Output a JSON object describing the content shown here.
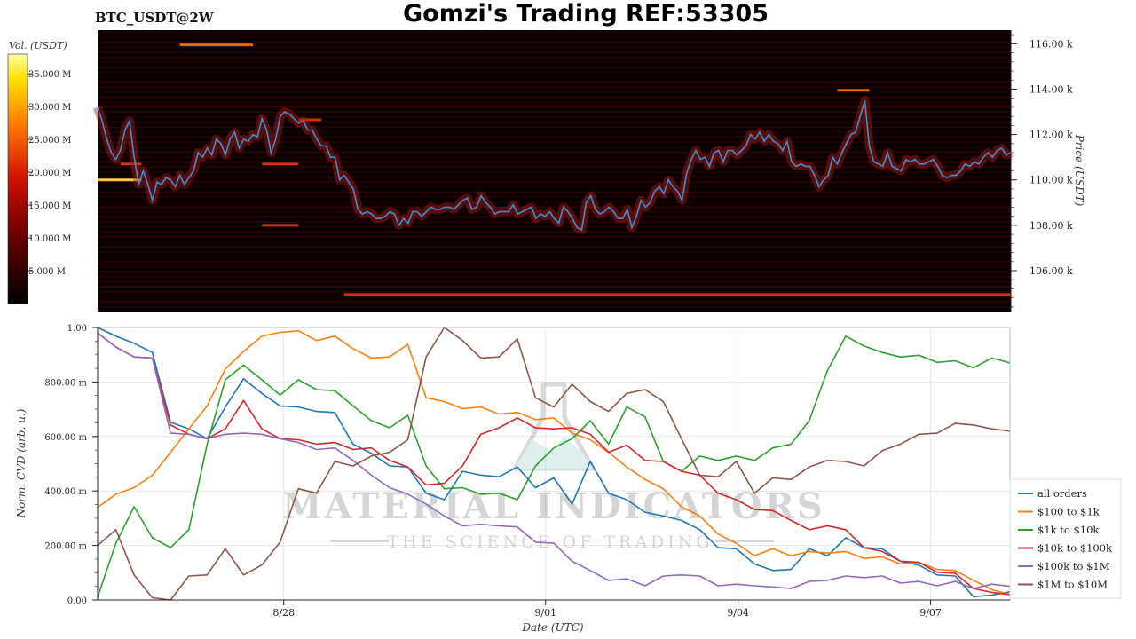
{
  "header": {
    "symbol": "BTC_USDT@2W",
    "title": "Gomzi's Trading REF:53305"
  },
  "colors": {
    "heatmap_bg": "#0a0000",
    "price_line": "#3c8fd6",
    "all_orders": "#1f77b4",
    "s100_1k": "#ff7f0e",
    "s1k_10k": "#2ca02c",
    "s10k_100k": "#d62728",
    "s100k_1m": "#9467bd",
    "s1m_10m": "#8c564b"
  },
  "watermark": {
    "name": "MATERIAL INDICATORS",
    "tagline": "THE SCIENCE OF TRADING",
    "icon": "flask-icon"
  },
  "chart_data": [
    {
      "type": "heatmap",
      "name": "order-book-heatmap",
      "colorbar": {
        "label": "Vol. (USDT)",
        "ticks": [
          {
            "value": 5,
            "label": "5.000 M"
          },
          {
            "value": 10,
            "label": "10.000 M"
          },
          {
            "value": 15,
            "label": "15.000 M"
          },
          {
            "value": 20,
            "label": "20.000 M"
          },
          {
            "value": 25,
            "label": "25.000 M"
          },
          {
            "value": 30,
            "label": "30.000 M"
          },
          {
            "value": 35,
            "label": "35.000 M"
          }
        ],
        "range": [
          0,
          38
        ]
      },
      "ylabel": "Price (USDT)",
      "ylim": [
        104200,
        116600
      ],
      "yticks": [
        {
          "value": 106000,
          "label": "106.00 k"
        },
        {
          "value": 108000,
          "label": "108.00 k"
        },
        {
          "value": 110000,
          "label": "110.00 k"
        },
        {
          "value": 112000,
          "label": "112.00 k"
        },
        {
          "value": 114000,
          "label": "114.00 k"
        },
        {
          "value": 116000,
          "label": "116.00 k"
        }
      ],
      "price_series": {
        "t": [
          0,
          0.5,
          1,
          1.5,
          2,
          2.5,
          3,
          3.5,
          4,
          4.5,
          5,
          5.5,
          6,
          6.5,
          7,
          7.5,
          8,
          8.5,
          9,
          9.5,
          10,
          10.5,
          11,
          11.5,
          12,
          12.5,
          13,
          13.5,
          14,
          14.5,
          15,
          15.5,
          16,
          16.5,
          17,
          17.5,
          18,
          18.5,
          19,
          19.5,
          20,
          20.5,
          21,
          21.5,
          22,
          22.5,
          23,
          23.5,
          24,
          24.5,
          25,
          25.5,
          26,
          26.5,
          27,
          27.5,
          28,
          28.5,
          29,
          29.5,
          30,
          30.5,
          31,
          31.5,
          32,
          32.5,
          33,
          33.5,
          34,
          34.5,
          35,
          35.5,
          36,
          36.5,
          37,
          37.5,
          38,
          38.5,
          39,
          39.5,
          40,
          40.5,
          41,
          41.5,
          42,
          42.5,
          43,
          43.5,
          44,
          44.5,
          45,
          45.5,
          46,
          46.5,
          47,
          47.5,
          48,
          48.5,
          49,
          49.5,
          50,
          50.5,
          51,
          51.5,
          52,
          52.5,
          53,
          53.5,
          54,
          54.5,
          55,
          55.5,
          56,
          56.5,
          57,
          57.5,
          58,
          58.5,
          59,
          59.5,
          60,
          60.5,
          61,
          61.5,
          62,
          62.5,
          63,
          63.5,
          64,
          64.5,
          65,
          65.5,
          66,
          66.5,
          67,
          67.5,
          68,
          68.5,
          69,
          69.5,
          70,
          70.5,
          71,
          71.5,
          72,
          72.5,
          73,
          73.5,
          74,
          74.5,
          75,
          75.5,
          76,
          76.5,
          77,
          77.5,
          78,
          78.5,
          79,
          79.5,
          80,
          80.5,
          81,
          81.5,
          82,
          82.5,
          83,
          83.5,
          84,
          84.5,
          85,
          85.5,
          86,
          86.5,
          87,
          87.5,
          88,
          88.5,
          89,
          89.5,
          90,
          90.5,
          91,
          91.5,
          92,
          92.5,
          93,
          93.5,
          94,
          94.5,
          95,
          95.5,
          96,
          96.5,
          97,
          97.5,
          98,
          98.5,
          99,
          99.5,
          100
        ],
        "price": [
          113200,
          112600,
          111800,
          111200,
          110900,
          111300,
          112200,
          112600,
          111000,
          109800,
          110400,
          109800,
          109100,
          109900,
          109800,
          110100,
          110000,
          109700,
          110200,
          109800,
          110100,
          110400,
          111200,
          111000,
          111400,
          111100,
          111800,
          111600,
          111100,
          111800,
          112100,
          111400,
          111800,
          111700,
          112000,
          111900,
          112700,
          112200,
          111200,
          111800,
          112800,
          113000,
          112900,
          112700,
          112500,
          112600,
          112200,
          112200,
          111800,
          111500,
          111500,
          111000,
          111000,
          110000,
          110200,
          109900,
          109600,
          108700,
          108500,
          108600,
          108500,
          108300,
          108300,
          108400,
          108600,
          108500,
          108000,
          108300,
          108100,
          108600,
          108600,
          108400,
          108600,
          108800,
          108700,
          108700,
          108800,
          108800,
          108700,
          108900,
          109100,
          109200,
          108700,
          108800,
          109300,
          109000,
          108800,
          108500,
          108600,
          108600,
          108600,
          108900,
          108500,
          108600,
          108700,
          108800,
          108300,
          108500,
          108400,
          108600,
          108300,
          108100,
          108800,
          108600,
          108300,
          107900,
          107800,
          109000,
          109300,
          108700,
          108500,
          108600,
          108800,
          108600,
          108300,
          108300,
          108700,
          107900,
          108400,
          109100,
          108800,
          109000,
          109500,
          109700,
          109400,
          110000,
          109700,
          109500,
          109100,
          110300,
          110900,
          111300,
          110900,
          111000,
          110600,
          111200,
          111300,
          110800,
          111300,
          111300,
          111100,
          111300,
          111500,
          112000,
          111800,
          112100,
          111700,
          112000,
          111700,
          111600,
          111300,
          111700,
          110800,
          110600,
          110700,
          110600,
          110600,
          110200,
          109700,
          110000,
          110200,
          111000,
          110700,
          111200,
          111600,
          112000,
          112100,
          112800,
          113500,
          111500,
          110800,
          110700,
          110600,
          111200,
          110600,
          110500,
          110400,
          110900,
          110800,
          110900,
          110700,
          110700,
          110800,
          110900,
          110600,
          110200,
          110100,
          110200,
          110200,
          110400,
          110700,
          110600,
          110800,
          110700,
          111000,
          111200,
          111000,
          111300,
          111400,
          111100,
          111200,
          111300,
          111300,
          111400,
          111000,
          111000
        ]
      },
      "bright_levels": [
        {
          "price": 115950,
          "t0": 9,
          "t1": 17,
          "intensity": 0.75
        },
        {
          "price": 110000,
          "t0": 0,
          "t1": 4.8,
          "intensity": 0.95
        },
        {
          "price": 110700,
          "t0": 2.5,
          "t1": 4.8,
          "intensity": 0.7
        },
        {
          "price": 110700,
          "t0": 18,
          "t1": 22,
          "intensity": 0.65
        },
        {
          "price": 108000,
          "t0": 18,
          "t1": 22,
          "intensity": 0.55
        },
        {
          "price": 112650,
          "t0": 22,
          "t1": 24.5,
          "intensity": 0.6
        },
        {
          "price": 113950,
          "t0": 81,
          "t1": 84.5,
          "intensity": 0.72
        },
        {
          "price": 104950,
          "t0": 27,
          "t1": 100,
          "intensity": 0.58
        }
      ]
    },
    {
      "type": "line",
      "name": "normalized-cvd",
      "xlabel": "Date (UTC)",
      "ylabel": "Norm. CVD (arb. u.)",
      "ylim": [
        0,
        1
      ],
      "yticks": [
        {
          "value": 0,
          "label": "0.00"
        },
        {
          "value": 0.2,
          "label": "200.00 m"
        },
        {
          "value": 0.4,
          "label": "400.00 m"
        },
        {
          "value": 0.6,
          "label": "600.00 m"
        },
        {
          "value": 0.8,
          "label": "800.00 m"
        },
        {
          "value": 1,
          "label": "1.00"
        }
      ],
      "xticks": [
        {
          "t": 20.4,
          "label": "8/28"
        },
        {
          "t": 49.1,
          "label": "9/01"
        },
        {
          "t": 70.2,
          "label": "9/04"
        },
        {
          "t": 91.3,
          "label": "9/07"
        }
      ],
      "x": [
        0,
        2,
        4,
        6,
        8,
        10,
        12,
        14,
        16,
        18,
        20,
        22,
        24,
        26,
        28,
        30,
        32,
        34,
        36,
        38,
        40,
        42,
        44,
        46,
        48,
        50,
        52,
        54,
        56,
        58,
        60,
        62,
        64,
        66,
        68,
        70,
        72,
        74,
        76,
        78,
        80,
        82,
        84,
        86,
        88,
        90,
        92,
        94,
        96,
        98,
        100
      ],
      "series": [
        {
          "name": "all orders",
          "color_key": "all_orders",
          "values": [
            1.0,
            0.96,
            0.95,
            0.9,
            0.66,
            0.62,
            0.6,
            0.7,
            0.82,
            0.75,
            0.72,
            0.7,
            0.7,
            0.68,
            0.58,
            0.53,
            0.5,
            0.48,
            0.4,
            0.36,
            0.48,
            0.45,
            0.46,
            0.48,
            0.42,
            0.44,
            0.36,
            0.5,
            0.4,
            0.36,
            0.33,
            0.3,
            0.3,
            0.25,
            0.2,
            0.18,
            0.14,
            0.1,
            0.12,
            0.18,
            0.17,
            0.22,
            0.2,
            0.18,
            0.15,
            0.12,
            0.1,
            0.08,
            0.02,
            0.01,
            0.03
          ]
        },
        {
          "name": "$100 to $1k",
          "color_key": "s100_1k",
          "values": [
            0.34,
            0.38,
            0.42,
            0.45,
            0.55,
            0.62,
            0.72,
            0.84,
            0.92,
            0.96,
            0.99,
            0.98,
            0.96,
            0.96,
            0.93,
            0.88,
            0.9,
            0.93,
            0.75,
            0.72,
            0.71,
            0.7,
            0.69,
            0.68,
            0.67,
            0.66,
            0.62,
            0.58,
            0.55,
            0.48,
            0.45,
            0.4,
            0.35,
            0.3,
            0.25,
            0.2,
            0.17,
            0.18,
            0.17,
            0.17,
            0.18,
            0.17,
            0.16,
            0.15,
            0.14,
            0.13,
            0.12,
            0.1,
            0.08,
            0.03,
            0.02
          ]
        },
        {
          "name": "$1k to $10k",
          "color_key": "s1k_10k",
          "values": [
            0.01,
            0.2,
            0.35,
            0.22,
            0.2,
            0.25,
            0.58,
            0.8,
            0.87,
            0.8,
            0.76,
            0.8,
            0.78,
            0.76,
            0.72,
            0.65,
            0.64,
            0.67,
            0.5,
            0.4,
            0.42,
            0.38,
            0.4,
            0.36,
            0.5,
            0.55,
            0.6,
            0.65,
            0.58,
            0.7,
            0.68,
            0.5,
            0.48,
            0.52,
            0.52,
            0.52,
            0.52,
            0.55,
            0.58,
            0.65,
            0.85,
            0.96,
            0.94,
            0.9,
            0.9,
            0.89,
            0.88,
            0.87,
            0.86,
            0.88,
            0.87
          ]
        },
        {
          "name": "$10k to $100k",
          "color_key": "s10k_100k",
          "values": [
            0.98,
            0.92,
            0.9,
            0.88,
            0.65,
            0.6,
            0.6,
            0.62,
            0.74,
            0.62,
            0.6,
            0.58,
            0.58,
            0.57,
            0.56,
            0.55,
            0.52,
            0.48,
            0.43,
            0.42,
            0.5,
            0.6,
            0.64,
            0.66,
            0.64,
            0.62,
            0.64,
            0.6,
            0.55,
            0.56,
            0.52,
            0.5,
            0.48,
            0.45,
            0.4,
            0.36,
            0.34,
            0.32,
            0.3,
            0.25,
            0.28,
            0.25,
            0.2,
            0.17,
            0.15,
            0.13,
            0.11,
            0.09,
            0.05,
            0.02,
            0.02
          ]
        },
        {
          "name": "$100k to $1M",
          "color_key": "s100k_1m",
          "values": [
            0.98,
            0.92,
            0.9,
            0.88,
            0.62,
            0.6,
            0.6,
            0.6,
            0.62,
            0.6,
            0.6,
            0.57,
            0.56,
            0.55,
            0.52,
            0.45,
            0.42,
            0.38,
            0.36,
            0.3,
            0.28,
            0.27,
            0.28,
            0.26,
            0.22,
            0.2,
            0.15,
            0.1,
            0.08,
            0.07,
            0.06,
            0.08,
            0.1,
            0.08,
            0.06,
            0.05,
            0.06,
            0.04,
            0.05,
            0.06,
            0.08,
            0.08,
            0.09,
            0.08,
            0.07,
            0.06,
            0.06,
            0.06,
            0.05,
            0.05,
            0.05
          ]
        },
        {
          "name": "$1M to $10M",
          "color_key": "s1m_10m",
          "values": [
            0.2,
            0.25,
            0.1,
            0.0,
            0.0,
            0.08,
            0.1,
            0.18,
            0.1,
            0.12,
            0.22,
            0.4,
            0.4,
            0.5,
            0.5,
            0.52,
            0.55,
            0.58,
            0.9,
            1.0,
            0.96,
            0.88,
            0.9,
            0.95,
            0.75,
            0.7,
            0.8,
            0.72,
            0.7,
            0.75,
            0.78,
            0.72,
            0.6,
            0.45,
            0.46,
            0.5,
            0.4,
            0.44,
            0.45,
            0.48,
            0.52,
            0.5,
            0.5,
            0.54,
            0.58,
            0.6,
            0.62,
            0.64,
            0.65,
            0.62,
            0.62
          ]
        }
      ],
      "legend": {
        "position": "right"
      }
    }
  ]
}
